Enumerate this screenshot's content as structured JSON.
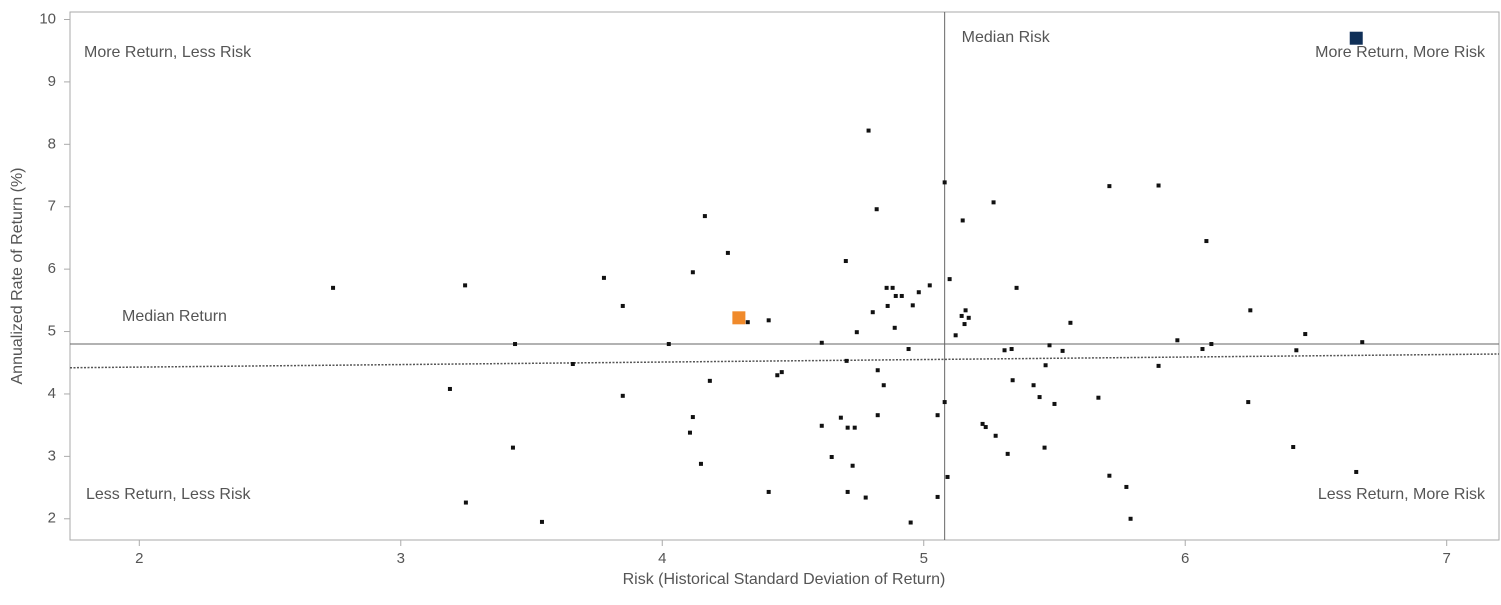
{
  "chart_data": {
    "type": "scatter",
    "x_label": "Risk (Historical Standard Deviation of Return)",
    "y_label": "Annualized Rate of Return (%)",
    "xlim": [
      1.735,
      7.2
    ],
    "xticks": [
      2,
      3,
      4,
      5,
      6,
      7
    ],
    "ylim": [
      1.66,
      10.12
    ],
    "yticks": [
      2,
      3,
      4,
      5,
      6,
      7,
      8,
      9,
      10
    ],
    "grid": false,
    "quadrant_labels": [
      "More Return, Less Risk",
      "More Return, More Risk",
      "Less Return, Less Risk",
      "Less Return, More Risk"
    ],
    "median_x": 5.08,
    "median_x_label": "Median Risk",
    "median_y": 4.8,
    "median_y_label": "Median Return",
    "trend": {
      "x": [
        1.735,
        7.2
      ],
      "y": [
        4.42,
        4.64
      ]
    },
    "points": {
      "color": "#111111",
      "x": [
        2.741,
        3.246,
        3.188,
        3.249,
        3.429,
        3.437,
        3.54,
        3.658,
        3.777,
        3.849,
        3.849,
        4.025,
        4.117,
        4.163,
        4.251,
        4.117,
        4.106,
        4.148,
        4.182,
        4.327,
        4.407,
        4.407,
        4.457,
        4.44,
        4.61,
        4.61,
        4.648,
        4.683,
        4.705,
        4.702,
        4.709,
        4.736,
        4.728,
        4.709,
        4.778,
        4.789,
        4.82,
        4.805,
        4.744,
        4.824,
        4.824,
        4.847,
        4.858,
        4.862,
        4.881,
        4.893,
        4.916,
        4.889,
        4.942,
        4.95,
        4.958,
        4.981,
        5.023,
        5.053,
        5.053,
        5.08,
        5.099,
        5.08,
        5.091,
        5.122,
        5.149,
        5.156,
        5.16,
        5.172,
        5.145,
        5.267,
        5.225,
        5.237,
        5.275,
        5.309,
        5.336,
        5.321,
        5.34,
        5.355,
        5.42,
        5.443,
        5.462,
        5.466,
        5.481,
        5.5,
        5.531,
        5.561,
        5.668,
        5.71,
        5.71,
        5.775,
        5.791,
        5.898,
        5.898,
        5.97,
        6.066,
        6.081,
        6.1,
        6.241,
        6.249,
        6.413,
        6.425,
        6.459,
        6.654,
        6.677
      ],
      "y": [
        5.7,
        5.74,
        4.08,
        2.26,
        3.14,
        4.8,
        1.95,
        4.48,
        5.86,
        5.41,
        3.97,
        4.8,
        5.95,
        6.85,
        6.26,
        3.63,
        3.38,
        2.88,
        4.21,
        5.15,
        5.18,
        2.43,
        4.35,
        4.3,
        4.82,
        3.49,
        2.99,
        3.62,
        4.53,
        6.13,
        3.46,
        3.46,
        2.85,
        2.43,
        2.34,
        8.22,
        6.96,
        5.31,
        4.99,
        4.38,
        3.66,
        4.14,
        5.7,
        5.41,
        5.7,
        5.57,
        5.57,
        5.06,
        4.72,
        1.94,
        5.42,
        5.63,
        5.74,
        3.66,
        2.35,
        7.39,
        5.84,
        3.87,
        2.67,
        4.94,
        6.78,
        5.12,
        5.34,
        5.22,
        5.25,
        7.07,
        3.52,
        3.47,
        3.33,
        4.7,
        4.72,
        3.04,
        4.22,
        5.7,
        4.14,
        3.95,
        3.14,
        4.46,
        4.78,
        3.84,
        4.69,
        5.14,
        3.94,
        7.33,
        2.69,
        2.51,
        2.0,
        7.34,
        4.45,
        4.86,
        4.72,
        6.45,
        4.8,
        3.87,
        5.34,
        3.15,
        4.7,
        4.96,
        2.75,
        4.83
      ]
    },
    "highlights": [
      {
        "x": 4.293,
        "y": 5.22,
        "color": "#f08a2b"
      },
      {
        "x": 6.654,
        "y": 9.7,
        "color": "#0f2f57"
      }
    ]
  }
}
